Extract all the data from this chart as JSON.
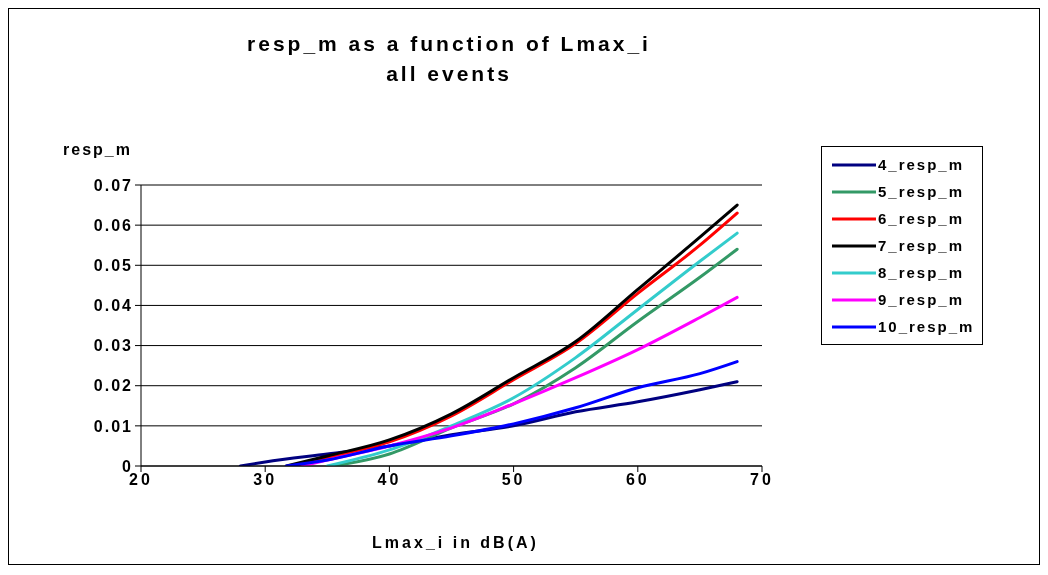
{
  "chart_data": {
    "type": "line",
    "title": "resp_m as a function of Lmax_i\nall events",
    "xlabel": "Lmax_i in dB(A)",
    "ylabel": "resp_m",
    "xlim": [
      20,
      70
    ],
    "xticks": [
      20,
      30,
      40,
      50,
      60,
      70
    ],
    "ylim": [
      0,
      0.07
    ],
    "yticks": [
      0,
      0.01,
      0.02,
      0.03,
      0.04,
      0.05,
      0.06,
      0.07
    ],
    "grid": "y",
    "legend": "right",
    "marker": "none",
    "line_style": "solid",
    "series": [
      {
        "name": "4_resp_m",
        "color": "#000080",
        "x": [
          28,
          30,
          35,
          40,
          45,
          50,
          55,
          60,
          65,
          68
        ],
        "values": [
          0,
          0.001,
          0.003,
          0.005,
          0.0078,
          0.01,
          0.0135,
          0.016,
          0.019,
          0.021
        ]
      },
      {
        "name": "5_resp_m",
        "color": "#339966",
        "x": [
          35.5,
          40,
          45,
          50,
          55,
          60,
          65,
          68
        ],
        "values": [
          0,
          0.003,
          0.0095,
          0.0155,
          0.0245,
          0.036,
          0.047,
          0.054
        ]
      },
      {
        "name": "6_resp_m",
        "color": "#ff0000",
        "x": [
          32.2,
          35,
          40,
          45,
          50,
          55,
          60,
          65,
          68
        ],
        "values": [
          0,
          0.002,
          0.006,
          0.0125,
          0.0215,
          0.0305,
          0.043,
          0.055,
          0.063
        ]
      },
      {
        "name": "7_resp_m",
        "color": "#000000",
        "x": [
          31.7,
          35,
          40,
          45,
          50,
          55,
          60,
          65,
          68
        ],
        "values": [
          0,
          0.0025,
          0.0065,
          0.013,
          0.022,
          0.031,
          0.044,
          0.057,
          0.065
        ]
      },
      {
        "name": "8_resp_m",
        "color": "#33cccc",
        "x": [
          35,
          40,
          45,
          50,
          55,
          60,
          65,
          68
        ],
        "values": [
          0,
          0.004,
          0.01,
          0.017,
          0.027,
          0.039,
          0.051,
          0.058
        ]
      },
      {
        "name": "9_resp_m",
        "color": "#ff00ff",
        "x": [
          33,
          35,
          40,
          45,
          50,
          55,
          60,
          65,
          68
        ],
        "values": [
          0,
          0.0015,
          0.005,
          0.0095,
          0.0155,
          0.022,
          0.029,
          0.037,
          0.042
        ]
      },
      {
        "name": "10_resp_m",
        "color": "#0000ff",
        "x": [
          31.7,
          35,
          40,
          45,
          50,
          55,
          60,
          65,
          68
        ],
        "values": [
          0,
          0.0015,
          0.005,
          0.0075,
          0.0105,
          0.0145,
          0.0195,
          0.023,
          0.026
        ]
      }
    ]
  }
}
